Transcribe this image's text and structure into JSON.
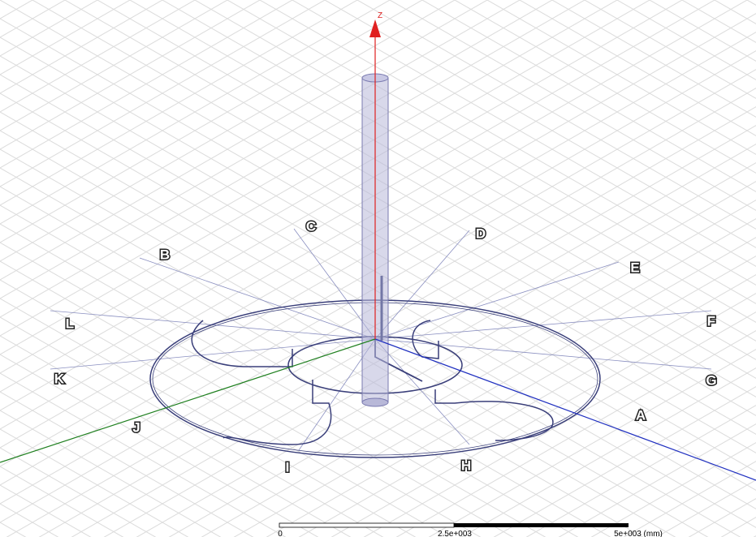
{
  "view": {
    "axis_label": "Z",
    "markers": [
      "A",
      "B",
      "C",
      "D",
      "E",
      "F",
      "G",
      "H",
      "I",
      "J",
      "K",
      "L"
    ],
    "scale_bar": {
      "labels": [
        "0",
        "2.5e+003",
        "5e+003 (mm)"
      ]
    }
  }
}
